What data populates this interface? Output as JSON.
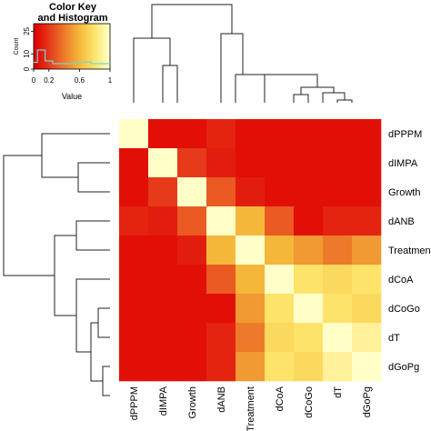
{
  "chart_data": {
    "type": "heatmap",
    "labels": [
      "dPPPM",
      "dIMPA",
      "Growth",
      "dANB",
      "Treatment",
      "dCoA",
      "dCoGo",
      "dT",
      "dGoPg"
    ],
    "matrix": [
      [
        1.0,
        0.05,
        0.05,
        0.12,
        0.05,
        0.05,
        0.05,
        0.05,
        0.05
      ],
      [
        0.05,
        1.0,
        0.2,
        0.1,
        0.05,
        0.05,
        0.05,
        0.05,
        0.05
      ],
      [
        0.05,
        0.2,
        1.0,
        0.3,
        0.1,
        0.05,
        0.05,
        0.05,
        0.05
      ],
      [
        0.12,
        0.1,
        0.3,
        1.0,
        0.6,
        0.3,
        0.05,
        0.12,
        0.12
      ],
      [
        0.05,
        0.05,
        0.1,
        0.6,
        1.0,
        0.6,
        0.5,
        0.4,
        0.5
      ],
      [
        0.05,
        0.05,
        0.05,
        0.3,
        0.6,
        1.0,
        0.8,
        0.75,
        0.8
      ],
      [
        0.05,
        0.05,
        0.05,
        0.05,
        0.5,
        0.8,
        1.0,
        0.8,
        0.75
      ],
      [
        0.05,
        0.05,
        0.05,
        0.12,
        0.4,
        0.75,
        0.8,
        1.0,
        0.9
      ],
      [
        0.05,
        0.05,
        0.05,
        0.12,
        0.5,
        0.8,
        0.75,
        0.9,
        1.0
      ]
    ],
    "color_scale": [
      "#e00000",
      "#e63a1a",
      "#ed7a2a",
      "#f5b73a",
      "#fde36a",
      "#ffffc8"
    ],
    "dendrogram_row": "left",
    "dendrogram_col": "top"
  },
  "color_key": {
    "title": "Color Key\nand Histogram",
    "ylabel": "Count",
    "xlabel": "Value",
    "y_ticks": [
      "0",
      "10",
      "25"
    ],
    "x_ticks": [
      "0",
      "0.2",
      "0.6",
      "1"
    ],
    "histogram_color": "#7ad3d3"
  }
}
